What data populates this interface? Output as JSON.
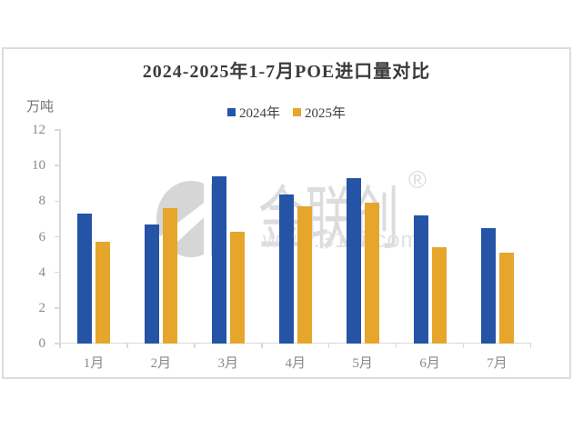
{
  "chart_data": {
    "type": "bar",
    "title": "2024-2025年1-7月POE进口量对比",
    "unit_label": "万吨",
    "categories": [
      "1月",
      "2月",
      "3月",
      "4月",
      "5月",
      "6月",
      "7月"
    ],
    "series": [
      {
        "name": "2024年",
        "color": "#2553A5",
        "values": [
          7.3,
          6.7,
          9.4,
          8.4,
          9.3,
          7.2,
          6.5
        ]
      },
      {
        "name": "2025年",
        "color": "#E5A62B",
        "values": [
          5.7,
          7.6,
          6.3,
          7.7,
          7.9,
          5.4,
          5.1
        ]
      }
    ],
    "ylim": [
      0,
      12
    ],
    "yticks": [
      0,
      2,
      4,
      6,
      8,
      10,
      12
    ],
    "grid": false,
    "legend_position": "top-center"
  },
  "watermark": {
    "brand": "金联创",
    "registered": "®",
    "url": "www.315i.com"
  },
  "colors": {
    "bar_2024": "#2553A5",
    "bar_2025": "#E5A62B",
    "title_text": "#3B3B3B",
    "axis_text": "#8A8A8A",
    "axis_line": "#D9D9D9",
    "box_border": "#DCDCDC",
    "watermark": "#DCDCDC",
    "background": "#FFFFFF"
  }
}
